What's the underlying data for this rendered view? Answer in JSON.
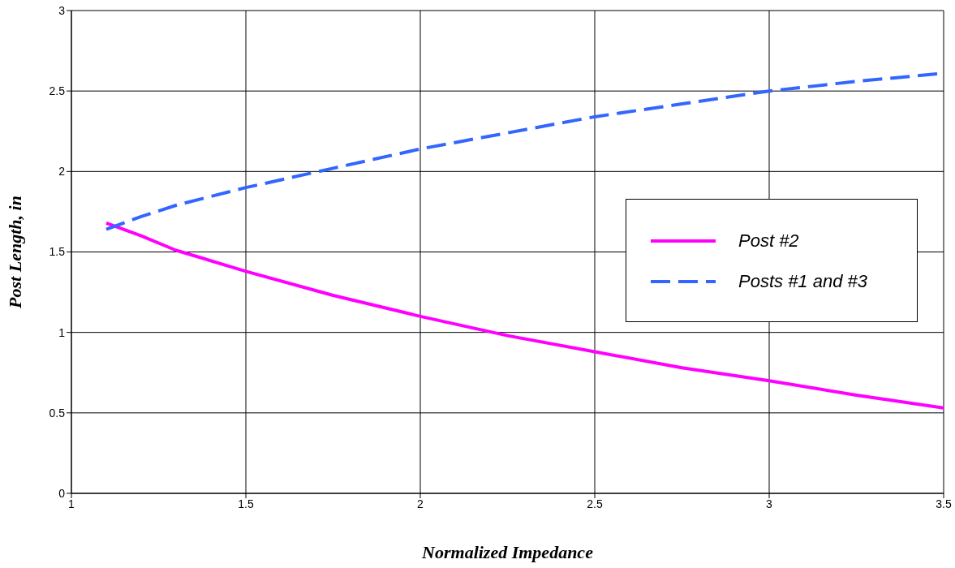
{
  "chart_data": {
    "type": "line",
    "xlabel": "Normalized Impedance",
    "ylabel": "Post Length, in",
    "x": [
      1.1,
      1.2,
      1.3,
      1.5,
      1.75,
      2,
      2.25,
      2.5,
      2.75,
      3,
      3.25,
      3.5
    ],
    "series": [
      {
        "name": "Post #2",
        "color": "#ff00ff",
        "line_style": "solid",
        "values": [
          1.68,
          1.6,
          1.51,
          1.38,
          1.23,
          1.1,
          0.98,
          0.88,
          0.78,
          0.7,
          0.61,
          0.53
        ]
      },
      {
        "name": "Posts #1 and #3",
        "color": "#3366ff",
        "line_style": "dashed",
        "values": [
          1.64,
          1.72,
          1.79,
          1.9,
          2.02,
          2.14,
          2.24,
          2.34,
          2.42,
          2.5,
          2.56,
          2.61
        ]
      }
    ],
    "xlim": [
      1,
      3.5
    ],
    "xticks": [
      1,
      1.5,
      2,
      2.5,
      3,
      3.5
    ],
    "ylim": [
      0,
      3
    ],
    "yticks": [
      0,
      0.5,
      1,
      1.5,
      2,
      2.5,
      3
    ],
    "grid": true,
    "legend": "right",
    "marker": "none"
  }
}
